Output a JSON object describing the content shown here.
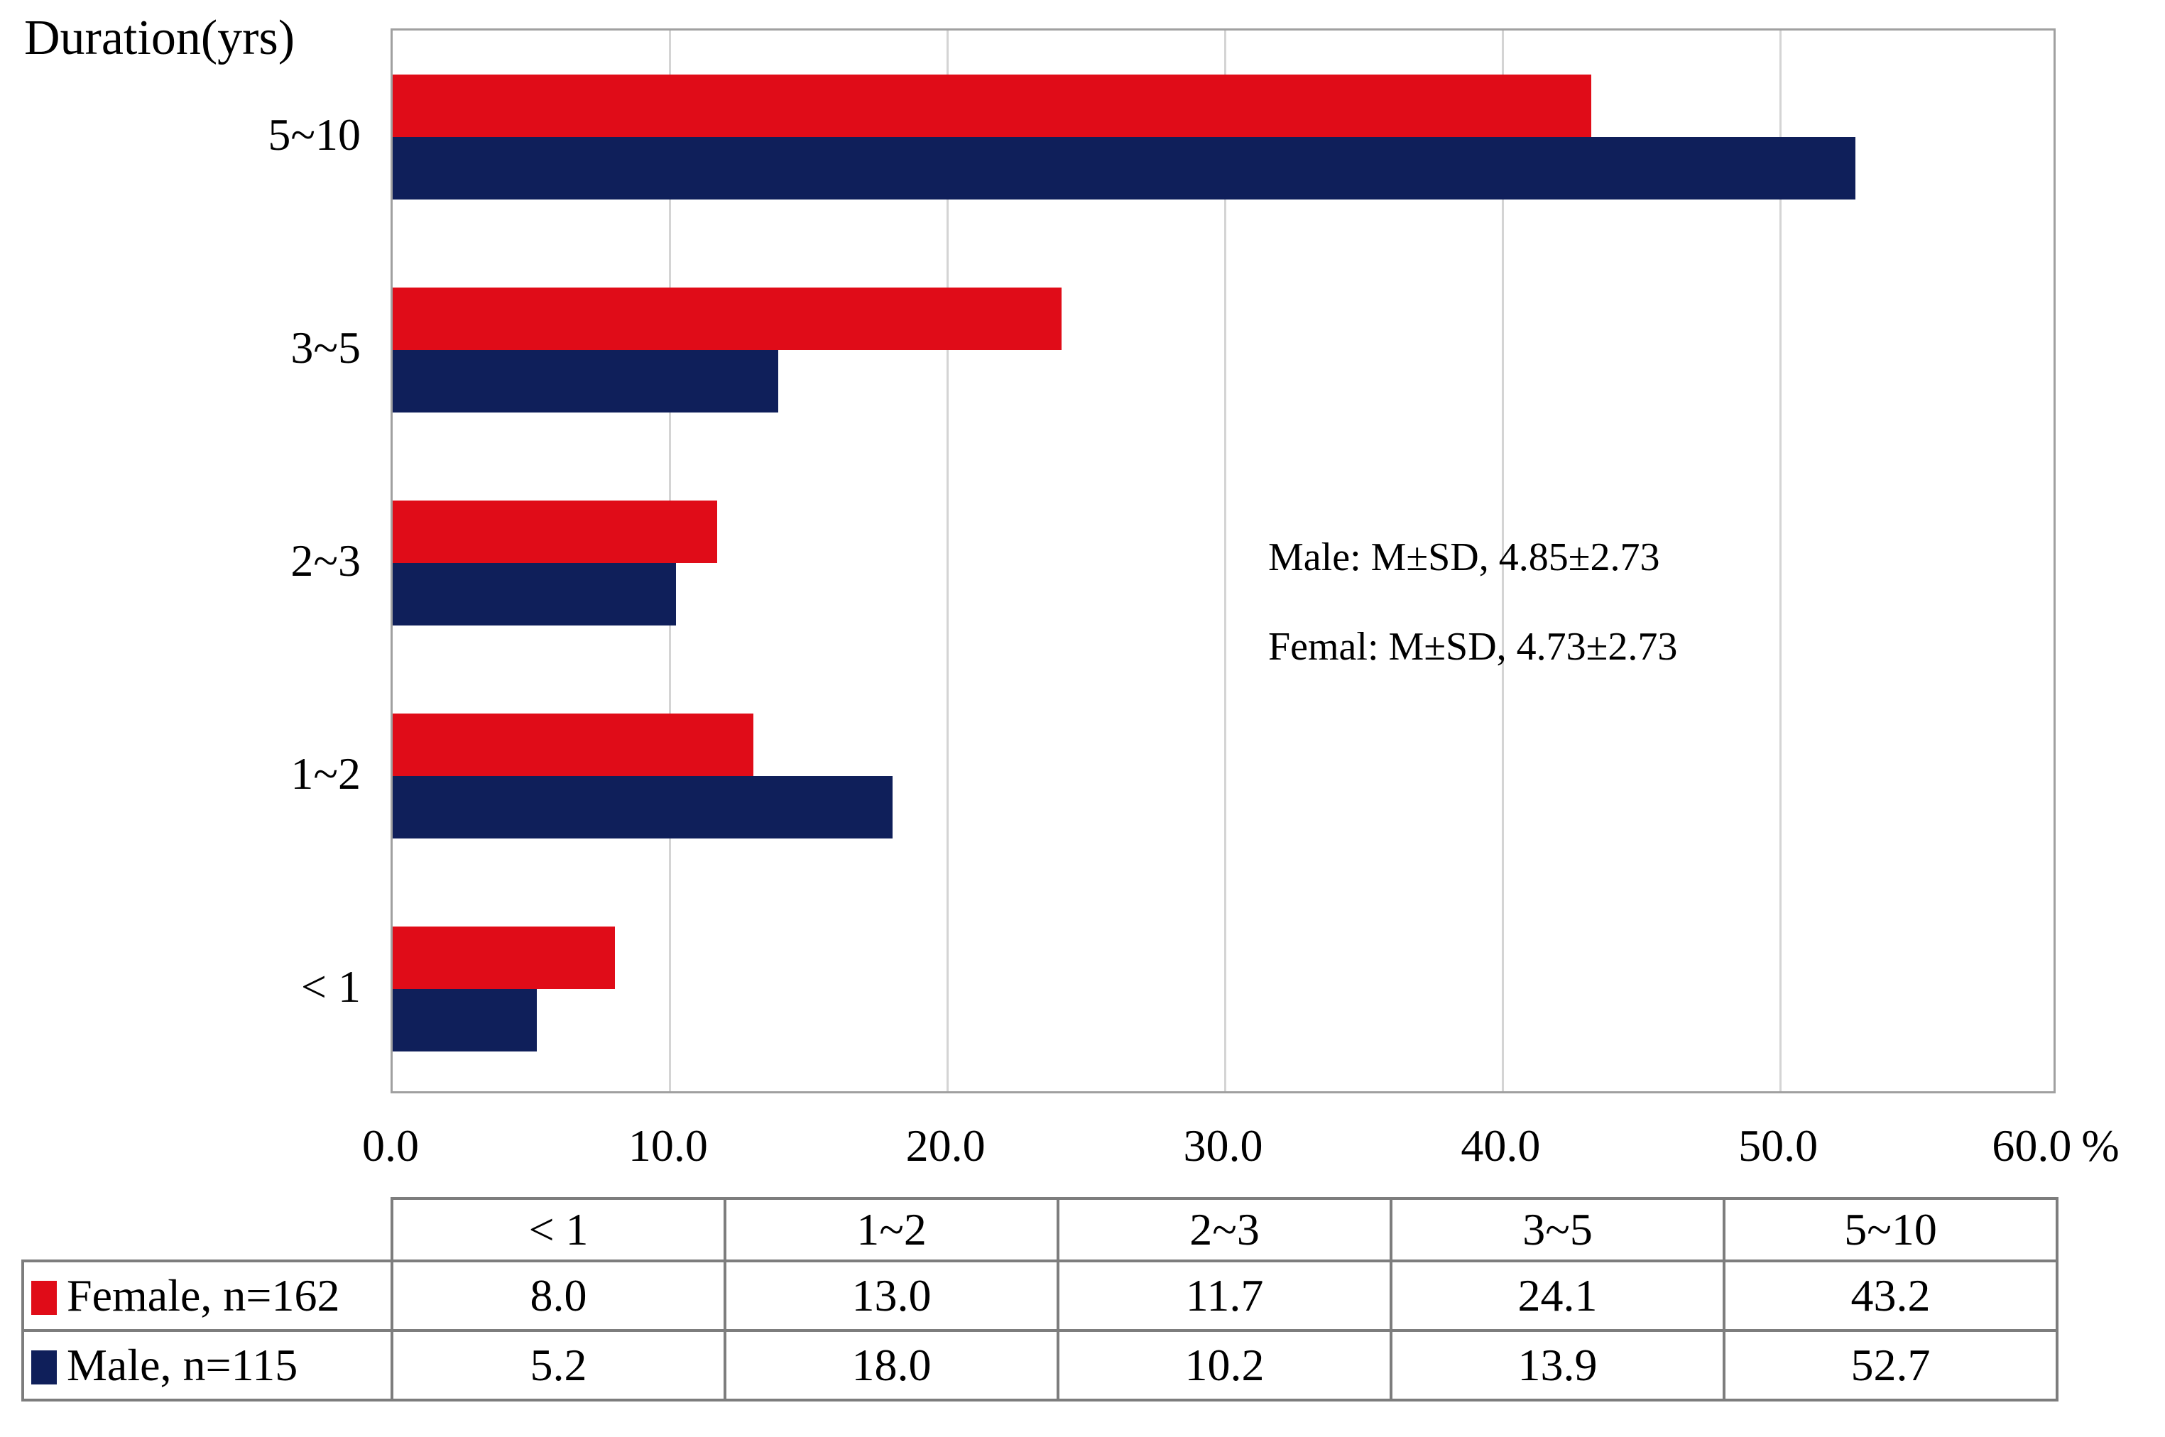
{
  "figure": {
    "title": "Duration(yrs)"
  },
  "annotation": {
    "male_line": "Male: M±SD, 4.85±2.73",
    "female_line": "Femal: M±SD, 4.73±2.73"
  },
  "chart_data": {
    "type": "bar",
    "orientation": "horizontal",
    "title": "Duration(yrs)",
    "ylabel": "Duration(yrs)",
    "xlabel": "%",
    "x_unit_suffix": "%",
    "xlim": [
      0,
      60
    ],
    "x_ticks": [
      0,
      10,
      20,
      30,
      40,
      50,
      60
    ],
    "x_tick_labels": [
      "0.0",
      "10.0",
      "20.0",
      "30.0",
      "40.0",
      "50.0",
      "60.0"
    ],
    "grid": "vertical-major-only",
    "legend_position": "table-below-chart",
    "categories_top_to_bottom": [
      "5~10",
      "3~5",
      "2~3",
      "1~2",
      "< 1"
    ],
    "series": [
      {
        "name": "Female, n=162",
        "color": "#e00c18",
        "values_top_to_bottom": [
          43.2,
          24.1,
          11.7,
          13.0,
          8.0
        ]
      },
      {
        "name": "Male, n=115",
        "color": "#0f1f5a",
        "values_top_to_bottom": [
          52.7,
          13.9,
          10.2,
          18.0,
          5.2
        ]
      }
    ],
    "annotations": [
      "Male: M±SD, 4.85±2.73",
      "Femal: M±SD, 4.73±2.73"
    ]
  },
  "table": {
    "column_headers": [
      "< 1",
      "1~2",
      "2~3",
      "3~5",
      "5~10"
    ],
    "rows": [
      {
        "label": "Female, n=162",
        "swatch_color": "#e00c18",
        "values": [
          "8.0",
          "13.0",
          "11.7",
          "24.1",
          "43.2"
        ]
      },
      {
        "label": "Male, n=115",
        "swatch_color": "#0f1f5a",
        "values": [
          "5.2",
          "18.0",
          "10.2",
          "13.9",
          "52.7"
        ]
      }
    ]
  },
  "colors": {
    "female_bar": "#e00c18",
    "male_bar": "#0f1f5a",
    "gridline": "#d4d4d4",
    "plot_border": "#a0a0a0",
    "table_border": "#7d7d7d",
    "background": "#ffffff"
  }
}
